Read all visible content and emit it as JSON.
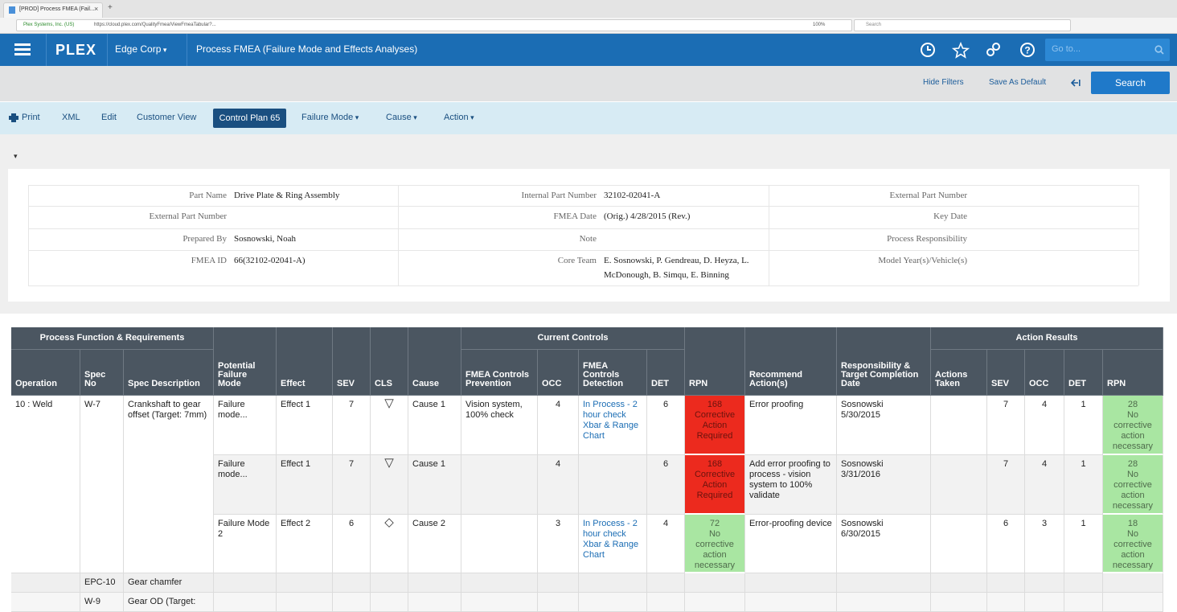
{
  "browser": {
    "tab_title": "[PROD] Process FMEA (Fail...",
    "site_identity": "Plex Systems, Inc. (US)",
    "url": "https://cloud.plex.com/QualityFmea/ViewFmeaTabular?...",
    "zoom": "100%",
    "search_placeholder": "Search"
  },
  "header": {
    "logo": "PLEX",
    "company": "Edge Corp",
    "title": "Process FMEA (Failure Mode and Effects Analyses)",
    "goto_placeholder": "Go to..."
  },
  "filter_bar": {
    "hide_filters": "Hide Filters",
    "save_default": "Save As Default",
    "search": "Search"
  },
  "toolbar": [
    {
      "label": "Print"
    },
    {
      "label": "XML"
    },
    {
      "label": "Edit"
    },
    {
      "label": "Customer View"
    },
    {
      "label": "Control Plan 65",
      "active": true
    },
    {
      "label": "Failure Mode",
      "menu": true
    },
    {
      "label": "Cause",
      "menu": true
    },
    {
      "label": "Action",
      "menu": true
    }
  ],
  "info": {
    "rows": [
      [
        {
          "label": "Part Name",
          "value": "Drive Plate & Ring Assembly"
        },
        {
          "label": "Internal Part Number",
          "value": "32102-02041-A"
        },
        {
          "label": "External Part Number"
        }
      ],
      [
        {
          "label": "External Part Number"
        },
        {
          "label": "FMEA Date",
          "value": "(Orig.) 4/28/2015 (Rev.)"
        },
        {
          "label": "Key Date"
        }
      ],
      [
        {
          "label": "Prepared By",
          "value": "Sosnowski, Noah"
        },
        {
          "label": "Note"
        },
        {
          "label": "Process Responsibility"
        }
      ],
      [
        {
          "label": "FMEA ID",
          "value": "66(32102-02041-A)"
        },
        {
          "label": "Core Team",
          "value": "E. Sosnowski, P. Gendreau, D. Heyza, L. McDonough, B. Simqu, E. Binning"
        },
        {
          "label": "Model Year(s)/Vehicle(s)"
        }
      ]
    ]
  },
  "table": {
    "groups": [
      "Process Function & Requirements",
      "Current Controls",
      "Action Results"
    ],
    "columns": [
      "Operation",
      "Spec No",
      "Spec Description",
      "Potential Failure Mode",
      "Effect",
      "SEV",
      "CLS",
      "Cause",
      "FMEA Controls Prevention",
      "OCC",
      "FMEA Controls Detection",
      "DET",
      "RPN",
      "Recommend Action(s)",
      "Responsibility & Target Completion Date",
      "Actions Taken",
      "SEV",
      "OCC",
      "DET",
      "RPN"
    ],
    "rows": [
      [
        "10 : Weld",
        "W-7",
        "Crankshaft to gear offset (Target: 7mm)",
        "Failure mode...",
        "Effect 1",
        7,
        "▽",
        "Cause 1",
        "Vision system, 100% check",
        4,
        "In Process - 2 hour check Xbar & Range Chart",
        6,
        {
          "value": 168,
          "status": "Corrective Action Required",
          "color": "#ec2a1e"
        },
        "Error proofing",
        "Sosnowski\n5/30/2015",
        null,
        7,
        4,
        1,
        {
          "value": 28,
          "status": "No corrective action necessary",
          "color": "#a9e6a2"
        }
      ],
      [
        null,
        null,
        null,
        "Failure mode...",
        "Effect 1",
        7,
        "▽",
        "Cause 1",
        null,
        4,
        null,
        6,
        {
          "value": 168,
          "status": "Corrective Action Required",
          "color": "#ec2a1e"
        },
        "Add error proofing to process - vision system to 100% validate",
        "Sosnowski\n3/31/2016",
        null,
        7,
        4,
        1,
        {
          "value": 28,
          "status": "No corrective action necessary",
          "color": "#a9e6a2"
        }
      ],
      [
        null,
        null,
        null,
        "Failure Mode 2",
        "Effect 2",
        6,
        "◇",
        "Cause 2",
        null,
        3,
        "In Process - 2 hour check Xbar & Range Chart",
        4,
        {
          "value": 72,
          "status": "No corrective action necessary",
          "color": "#a9e6a2"
        },
        "Error-proofing device",
        "Sosnowski\n6/30/2015",
        null,
        6,
        3,
        1,
        {
          "value": 18,
          "status": "No corrective action necessary",
          "color": "#a9e6a2"
        }
      ],
      [
        null,
        "EPC-10",
        "Gear chamfer",
        null,
        null,
        null,
        null,
        null,
        null,
        null,
        null,
        null,
        null,
        null,
        null,
        null,
        null,
        null,
        null,
        null
      ],
      [
        null,
        "W-9",
        "Gear OD (Target:",
        null,
        null,
        null,
        null,
        null,
        null,
        null,
        null,
        null,
        null,
        null,
        null,
        null,
        null,
        null,
        null,
        null
      ]
    ]
  }
}
